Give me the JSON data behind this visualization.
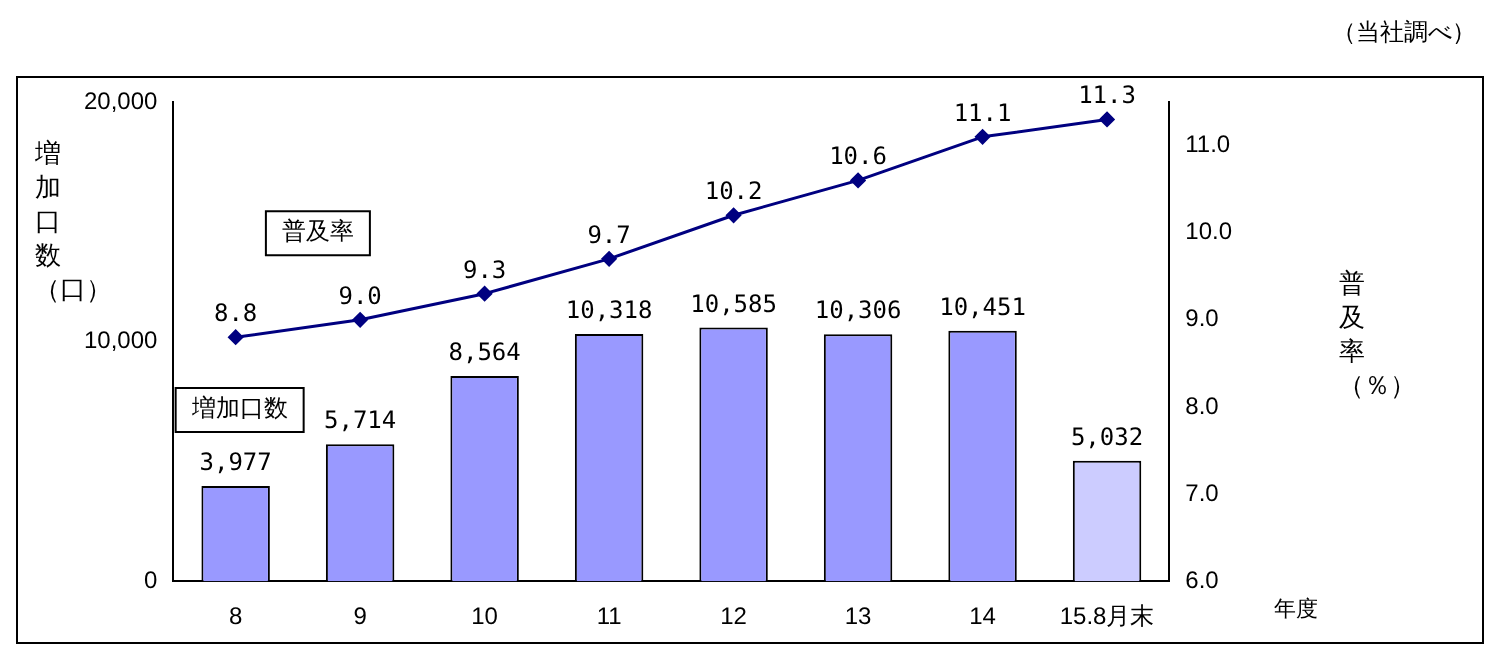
{
  "chart_data": {
    "type": "bar",
    "categories": [
      "8",
      "9",
      "10",
      "11",
      "12",
      "13",
      "14",
      "15.8月末"
    ],
    "xlabel": "年度",
    "ylabel": "増加口数（口）",
    "y2label": "普及率（％）",
    "annotations": [
      "（当社調べ）"
    ],
    "series": [
      {
        "name": "増加口数",
        "colors": [
          "#9999ff",
          "#9999ff",
          "#9999ff",
          "#9999ff",
          "#9999ff",
          "#9999ff",
          "#9999ff",
          "#ccccff"
        ],
        "value_labels": [
          "3,977",
          "5,714",
          "8,564",
          "10,318",
          "10,585",
          "10,306",
          "10,451",
          "5,032"
        ],
        "values": [
          3977,
          5714,
          8564,
          10318,
          10585,
          10306,
          10451,
          5032
        ]
      },
      {
        "name": "普及率",
        "type": "line",
        "axis": "y2",
        "color": "#000080",
        "marker": "diamond",
        "value_labels": [
          "8.8",
          "9.0",
          "9.3",
          "9.7",
          "10.2",
          "10.6",
          "11.1",
          "11.3"
        ],
        "values": [
          8.8,
          9.0,
          9.3,
          9.7,
          10.2,
          10.6,
          11.1,
          11.3
        ]
      }
    ],
    "ylim": [
      0,
      20000
    ],
    "yticks": [
      0,
      {
        "value": 10000,
        "label": "10,000"
      },
      {
        "value": 20000,
        "label": "20,000"
      }
    ],
    "y2lim": [
      6,
      11.5
    ],
    "y2ticks": [
      {
        "value": 6,
        "label": "6.0"
      },
      {
        "value": 7,
        "label": "7.0"
      },
      {
        "value": 8,
        "label": "8.0"
      },
      {
        "value": 9,
        "label": "9.0"
      },
      {
        "value": 10,
        "label": "10.0"
      },
      {
        "value": 11,
        "label": "11.0"
      }
    ],
    "grid": false,
    "legend": false
  }
}
